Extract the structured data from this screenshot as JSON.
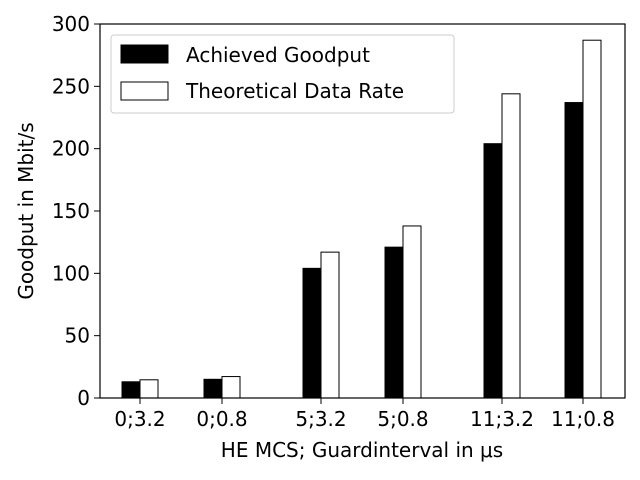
{
  "chart_data": {
    "type": "bar",
    "categories": [
      "0;3.2",
      "0;0.8",
      "5;3.2",
      "5;0.8",
      "11;3.2",
      "11;0.8"
    ],
    "series": [
      {
        "name": "Achieved Goodput",
        "values": [
          13,
          15,
          104,
          121,
          204,
          237
        ],
        "color": "#000000"
      },
      {
        "name": "Theoretical Data Rate",
        "values": [
          14.6,
          17.2,
          117,
          138,
          244,
          287
        ],
        "color": "#ffffff"
      }
    ],
    "title": "",
    "xlabel": "HE MCS; Guardinterval in μs",
    "ylabel": "Goodput in Mbit/s",
    "ylim": [
      0,
      300
    ],
    "yticks": [
      "0",
      "50",
      "100",
      "150",
      "200",
      "250",
      "300"
    ],
    "grid": false,
    "legend_position": "top-left"
  }
}
